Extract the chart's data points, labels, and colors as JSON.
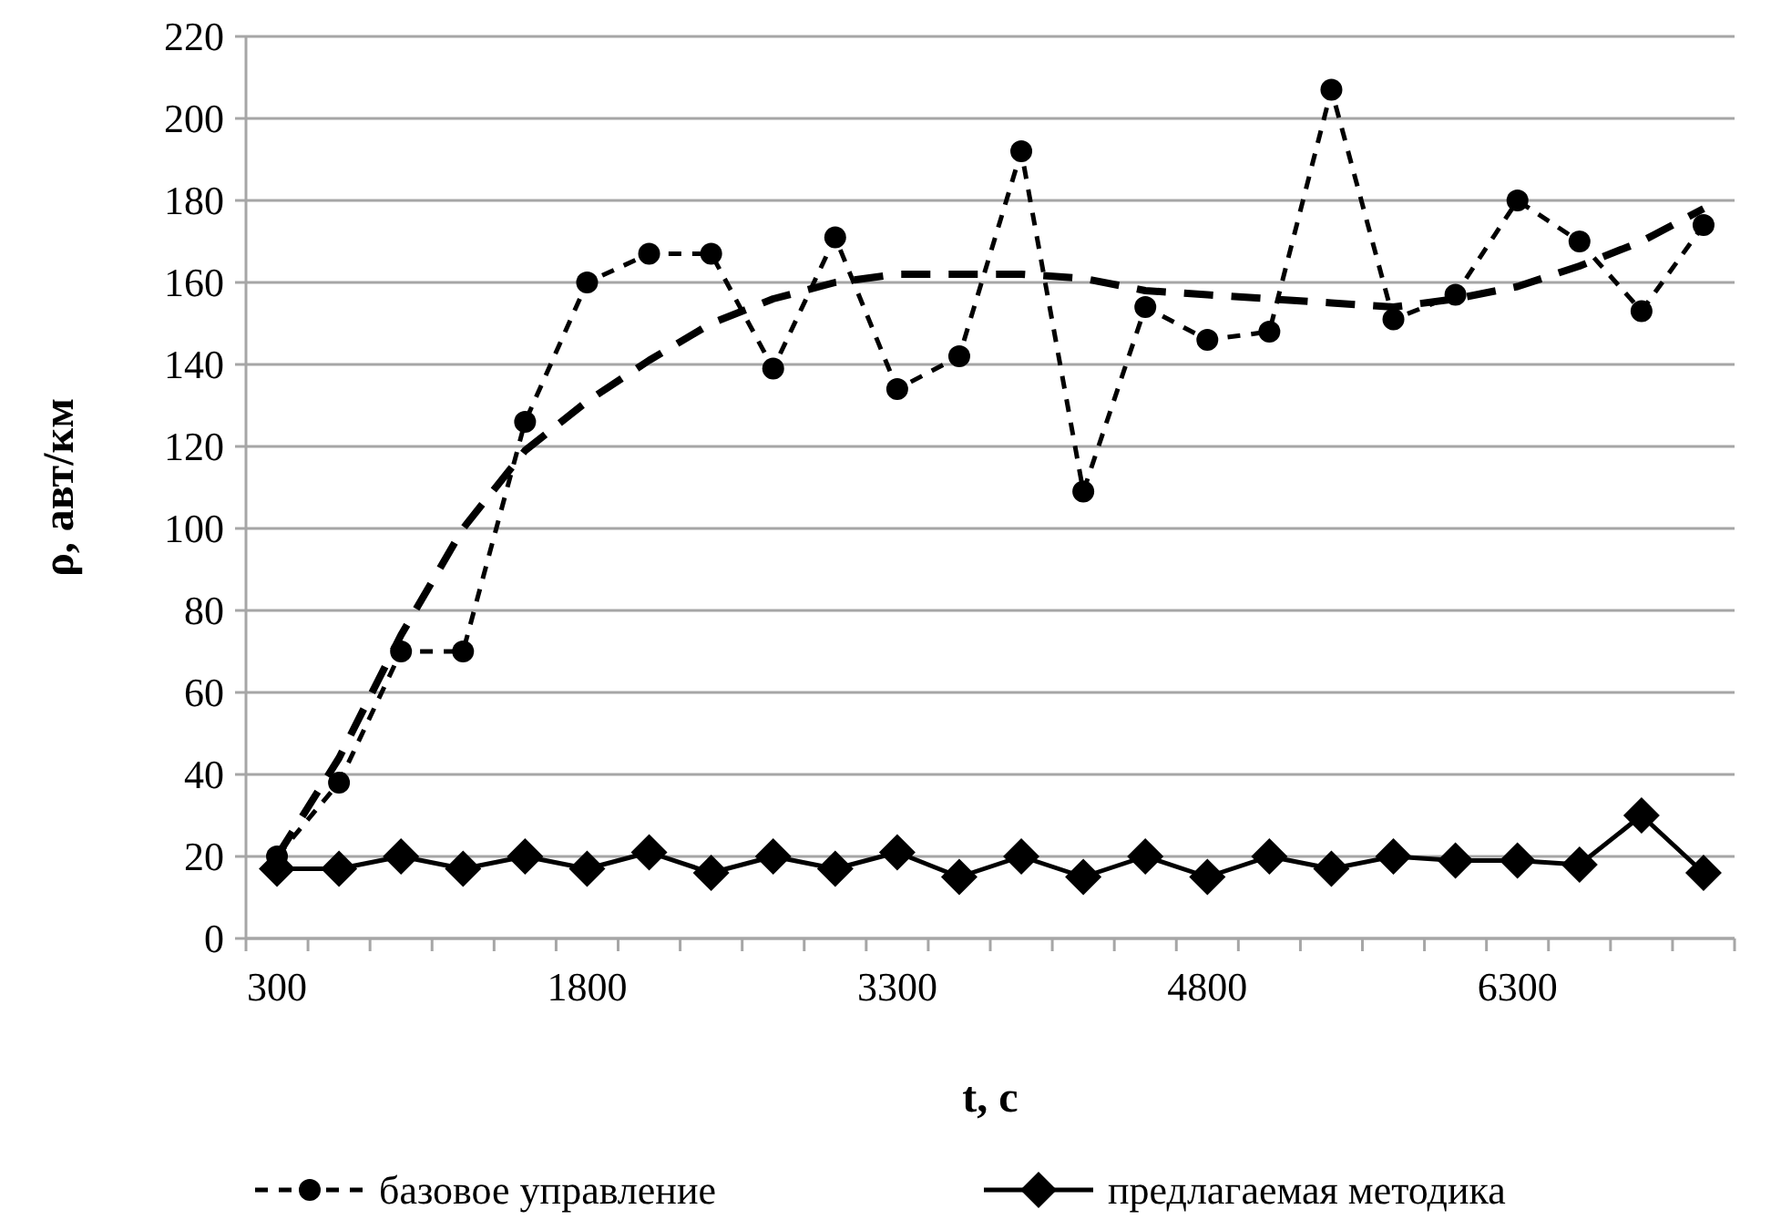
{
  "chart_data": {
    "type": "line",
    "xlabel": "t, с",
    "ylabel": "ρ, авт/км",
    "categories": [
      "300",
      null,
      null,
      null,
      null,
      "1800",
      null,
      null,
      null,
      null,
      "3300",
      null,
      null,
      null,
      null,
      "4800",
      null,
      null,
      null,
      null,
      "6300",
      null,
      null,
      null
    ],
    "series": [
      {
        "name": "базовое управление",
        "color": "#000000",
        "marker": "circle",
        "line_style": "dashed",
        "values": [
          20,
          38,
          70,
          70,
          126,
          160,
          167,
          167,
          139,
          171,
          134,
          142,
          192,
          109,
          154,
          146,
          148,
          207,
          151,
          157,
          180,
          170,
          153,
          174
        ]
      },
      {
        "name": "предлагаемая методика",
        "color": "#000000",
        "marker": "diamond",
        "line_style": "solid",
        "values": [
          17,
          17,
          20,
          17,
          20,
          17,
          21,
          16,
          20,
          17,
          21,
          15,
          20,
          15,
          20,
          15,
          20,
          17,
          20,
          19,
          19,
          18,
          30,
          16
        ]
      },
      {
        "color": "#000000",
        "marker": "none",
        "line_style": "dashed",
        "values": [
          20,
          44,
          74,
          100,
          119,
          131,
          141,
          150,
          156,
          160,
          162,
          162,
          162,
          161,
          158,
          157,
          156,
          155,
          154,
          156,
          159,
          164,
          170,
          178
        ]
      }
    ],
    "ylim": [
      0,
      220
    ],
    "yticks": [
      0,
      20,
      40,
      60,
      80,
      100,
      120,
      140,
      160,
      180,
      200,
      220
    ],
    "grid": "y",
    "legend": "bottom"
  }
}
